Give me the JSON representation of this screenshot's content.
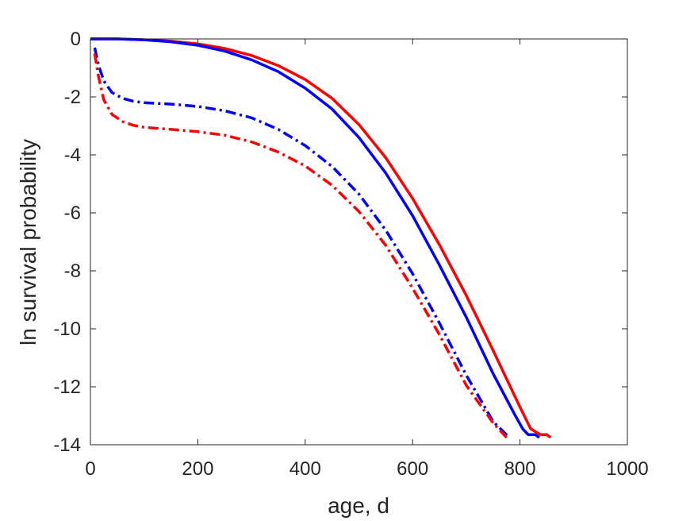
{
  "chart_data": {
    "type": "line",
    "title": "",
    "xlabel": "age, d",
    "ylabel": "ln survival probability",
    "xlim": [
      0,
      1000
    ],
    "ylim": [
      -14,
      0
    ],
    "xticks": [
      0,
      200,
      400,
      600,
      800,
      1000
    ],
    "yticks": [
      0,
      -2,
      -4,
      -6,
      -8,
      -10,
      -12,
      -14
    ],
    "xtick_labels": [
      "0",
      "200",
      "400",
      "600",
      "800",
      "1000"
    ],
    "ytick_labels": [
      "0",
      "-2",
      "-4",
      "-6",
      "-8",
      "-10",
      "-12",
      "-14"
    ],
    "grid": false,
    "box": true,
    "series": [
      {
        "color": "#ff0000",
        "linestyle": "solid",
        "x": [
          0,
          50,
          100,
          150,
          200,
          250,
          300,
          350,
          400,
          450,
          500,
          550,
          600,
          650,
          700,
          750,
          800,
          820,
          838,
          850,
          857
        ],
        "y": [
          0,
          0,
          -0.03,
          -0.08,
          -0.17,
          -0.33,
          -0.57,
          -0.92,
          -1.4,
          -2.05,
          -2.95,
          -4.1,
          -5.5,
          -7.1,
          -8.85,
          -10.75,
          -12.7,
          -13.45,
          -13.65,
          -13.65,
          -13.75
        ]
      },
      {
        "color": "#0000ff",
        "linestyle": "solid",
        "x": [
          0,
          50,
          100,
          150,
          200,
          250,
          300,
          350,
          400,
          450,
          500,
          550,
          600,
          650,
          700,
          750,
          790,
          805,
          815,
          828,
          836
        ],
        "y": [
          0,
          0,
          -0.03,
          -0.1,
          -0.22,
          -0.42,
          -0.72,
          -1.13,
          -1.7,
          -2.42,
          -3.4,
          -4.63,
          -6.1,
          -7.8,
          -9.6,
          -11.55,
          -12.95,
          -13.45,
          -13.65,
          -13.65,
          -13.75
        ]
      },
      {
        "color": "#0000ff",
        "linestyle": "dashdot",
        "x": [
          8,
          15,
          25,
          40,
          60,
          80,
          100,
          150,
          200,
          250,
          300,
          350,
          400,
          450,
          500,
          550,
          600,
          650,
          700,
          750,
          780
        ],
        "y": [
          -0.3,
          -0.9,
          -1.45,
          -1.85,
          -2.05,
          -2.15,
          -2.2,
          -2.25,
          -2.33,
          -2.48,
          -2.72,
          -3.12,
          -3.68,
          -4.4,
          -5.35,
          -6.6,
          -8.1,
          -9.8,
          -11.6,
          -13.2,
          -13.75
        ]
      },
      {
        "color": "#ff0000",
        "linestyle": "dashdot",
        "x": [
          8,
          15,
          25,
          40,
          60,
          80,
          100,
          150,
          200,
          250,
          300,
          350,
          400,
          450,
          500,
          550,
          600,
          650,
          700,
          750,
          775
        ],
        "y": [
          -0.5,
          -1.3,
          -2.1,
          -2.6,
          -2.85,
          -2.98,
          -3.05,
          -3.12,
          -3.2,
          -3.32,
          -3.55,
          -3.9,
          -4.38,
          -5.05,
          -5.95,
          -7.12,
          -8.6,
          -10.2,
          -11.95,
          -13.25,
          -13.75
        ]
      }
    ]
  }
}
